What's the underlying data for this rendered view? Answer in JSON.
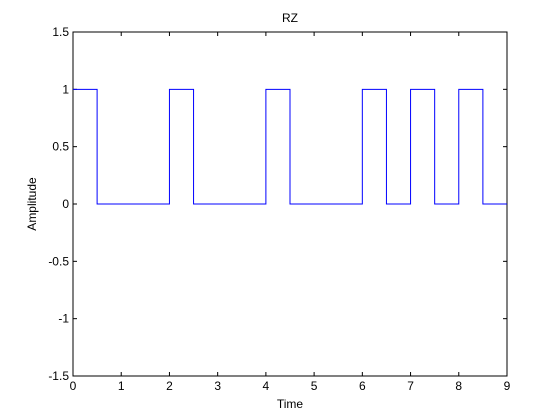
{
  "chart_data": {
    "type": "line",
    "step": true,
    "title": "RZ",
    "xlabel": "Time",
    "ylabel": "Amplitude",
    "xlim": [
      0,
      9
    ],
    "ylim": [
      -1.5,
      1.5
    ],
    "xticks": [
      "0",
      "1",
      "2",
      "3",
      "4",
      "5",
      "6",
      "7",
      "8",
      "9"
    ],
    "yticks": [
      "1.5",
      "1",
      "0.5",
      "0",
      "-0.5",
      "-1",
      "-1.5"
    ],
    "xtick_values": [
      0,
      1,
      2,
      3,
      4,
      5,
      6,
      7,
      8,
      9
    ],
    "ytick_values": [
      1.5,
      1,
      0.5,
      0,
      -0.5,
      -1,
      -1.5
    ],
    "grid": false,
    "series": [
      {
        "color": "#0000ff",
        "x": [
          0,
          0.5,
          0.5,
          2,
          2,
          2.5,
          2.5,
          4,
          4,
          4.5,
          4.5,
          6,
          6,
          6.5,
          6.5,
          7,
          7,
          7.5,
          7.5,
          8,
          8,
          8.5,
          8.5,
          9
        ],
        "y": [
          1,
          1,
          0,
          0,
          1,
          1,
          0,
          0,
          1,
          1,
          0,
          0,
          1,
          1,
          0,
          0,
          1,
          1,
          0,
          0,
          1,
          1,
          0,
          0
        ]
      }
    ]
  }
}
